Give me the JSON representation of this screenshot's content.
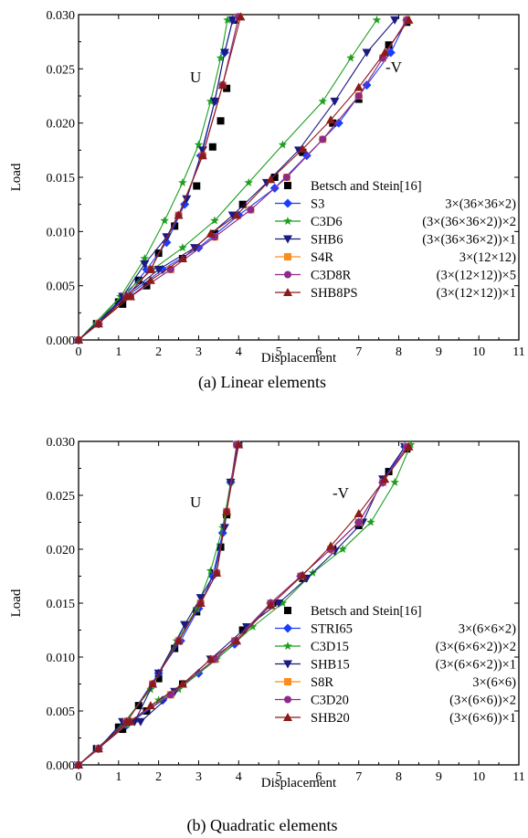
{
  "chart_data": [
    {
      "type": "line",
      "caption": "(a) Linear elements",
      "xlabel": "Displacement",
      "ylabel": "Load",
      "xlim": [
        0,
        11
      ],
      "ylim": [
        0,
        0.03
      ],
      "xticks": [
        "0",
        "1",
        "2",
        "3",
        "4",
        "5",
        "6",
        "7",
        "8",
        "9",
        "10",
        "11"
      ],
      "yticks": [
        "0.000",
        "0.005",
        "0.010",
        "0.015",
        "0.020",
        "0.025",
        "0.030"
      ],
      "annotations": [
        "U",
        "-V"
      ],
      "legend_position": "lower-right",
      "legend": [
        {
          "name": "Betsch and Stein[16]",
          "mesh": ""
        },
        {
          "name": "S3",
          "mesh": "3×(36×36×2)"
        },
        {
          "name": "C3D6",
          "mesh": "(3×(36×36×2))×2"
        },
        {
          "name": "SHB6",
          "mesh": "(3×(36×36×2))×1"
        },
        {
          "name": "S4R",
          "mesh": "3×(12×12)"
        },
        {
          "name": "C3D8R",
          "mesh": "(3×(12×12))×5"
        },
        {
          "name": "SHB8PS",
          "mesh": "(3×(12×12))×1"
        }
      ],
      "series": [
        {
          "name": "Betsch and Stein[16]",
          "color": "#000000",
          "marker": "square",
          "line": false,
          "U": {
            "x": [
              0,
              0.45,
              1.0,
              1.5,
              2.0,
              2.4,
              2.95,
              3.35,
              3.55,
              3.7,
              3.9
            ],
            "y": [
              0,
              0.0015,
              0.0035,
              0.0055,
              0.008,
              0.0105,
              0.0142,
              0.0178,
              0.0202,
              0.0232,
              0.0295
            ]
          },
          "V": {
            "x": [
              0,
              1.1,
              1.7,
              2.6,
              3.4,
              4.1,
              4.9,
              5.6,
              6.35,
              7.0,
              7.75,
              8.2
            ],
            "y": [
              0,
              0.0033,
              0.005,
              0.0075,
              0.0098,
              0.0125,
              0.015,
              0.0173,
              0.02,
              0.0222,
              0.0272,
              0.0293
            ]
          }
        },
        {
          "name": "S3",
          "color": "#1a3cff",
          "marker": "diamond",
          "line": true,
          "U": {
            "x": [
              0,
              0.5,
              1.15,
              1.7,
              2.2,
              2.65,
              3.05,
              3.4,
              3.65,
              3.85
            ],
            "y": [
              0,
              0.0015,
              0.004,
              0.0065,
              0.009,
              0.0125,
              0.017,
              0.022,
              0.0265,
              0.0295
            ]
          },
          "V": {
            "x": [
              0,
              1.2,
              2.1,
              3.0,
              4.0,
              4.9,
              5.7,
              6.5,
              7.2,
              7.8,
              8.2
            ],
            "y": [
              0,
              0.004,
              0.0065,
              0.0085,
              0.0115,
              0.014,
              0.017,
              0.02,
              0.0235,
              0.0265,
              0.0295
            ]
          }
        },
        {
          "name": "C3D6",
          "color": "#1e9e1e",
          "marker": "star",
          "line": true,
          "U": {
            "x": [
              0,
              0.45,
              1.05,
              1.65,
              2.15,
              2.6,
              3.0,
              3.3,
              3.55,
              3.72
            ],
            "y": [
              0,
              0.0015,
              0.004,
              0.0075,
              0.011,
              0.0145,
              0.018,
              0.022,
              0.026,
              0.0295
            ]
          },
          "V": {
            "x": [
              0,
              1.05,
              1.85,
              2.6,
              3.4,
              4.25,
              5.1,
              6.1,
              6.8,
              7.45
            ],
            "y": [
              0,
              0.004,
              0.0065,
              0.0085,
              0.011,
              0.0145,
              0.018,
              0.022,
              0.026,
              0.0295
            ]
          }
        },
        {
          "name": "SHB6",
          "color": "#1a1a80",
          "marker": "triangle-down",
          "line": true,
          "U": {
            "x": [
              0,
              0.5,
              1.1,
              1.65,
              2.2,
              2.7,
              3.1,
              3.4,
              3.65,
              3.85
            ],
            "y": [
              0,
              0.0015,
              0.004,
              0.007,
              0.0095,
              0.013,
              0.0175,
              0.022,
              0.0265,
              0.0295
            ]
          },
          "V": {
            "x": [
              0,
              1.15,
              2.0,
              2.9,
              3.85,
              4.7,
              5.5,
              6.4,
              7.2,
              7.9
            ],
            "y": [
              0,
              0.004,
              0.0065,
              0.0085,
              0.0115,
              0.0145,
              0.0175,
              0.022,
              0.0265,
              0.0295
            ]
          }
        },
        {
          "name": "S4R",
          "color": "#ff8c1a",
          "marker": "square",
          "line": true,
          "U": {
            "x": [
              0,
              0.5,
              1.2,
              1.8,
              2.5,
              3.1,
              3.6,
              4.0
            ],
            "y": [
              0,
              0.0015,
              0.004,
              0.0065,
              0.0115,
              0.017,
              0.0235,
              0.0298
            ]
          },
          "V": {
            "x": [
              0,
              1.3,
              2.3,
              3.4,
              4.3,
              5.2,
              6.1,
              7.0,
              7.6,
              8.2
            ],
            "y": [
              0,
              0.004,
              0.0065,
              0.0095,
              0.012,
              0.015,
              0.0185,
              0.0225,
              0.026,
              0.0295
            ]
          }
        },
        {
          "name": "C3D8R",
          "color": "#8c2a8c",
          "marker": "circle",
          "line": true,
          "U": {
            "x": [
              0,
              0.5,
              1.2,
              1.8,
              2.5,
              3.1,
              3.6,
              4.0
            ],
            "y": [
              0,
              0.0015,
              0.004,
              0.0065,
              0.0115,
              0.017,
              0.0235,
              0.0298
            ]
          },
          "V": {
            "x": [
              0,
              1.3,
              2.3,
              3.4,
              4.3,
              5.2,
              6.1,
              7.0,
              7.6,
              8.2
            ],
            "y": [
              0,
              0.004,
              0.0065,
              0.0095,
              0.012,
              0.015,
              0.0185,
              0.0225,
              0.026,
              0.0295
            ]
          }
        },
        {
          "name": "SHB8PS",
          "color": "#8b1a1a",
          "marker": "triangle-up",
          "line": true,
          "U": {
            "x": [
              0,
              0.5,
              1.2,
              1.8,
              2.5,
              3.1,
              3.6,
              4.05
            ],
            "y": [
              0,
              0.0015,
              0.004,
              0.0065,
              0.0115,
              0.017,
              0.0235,
              0.0298
            ]
          },
          "V": {
            "x": [
              0,
              1.3,
              1.8,
              2.6,
              3.3,
              3.95,
              4.8,
              5.6,
              6.3,
              7.0,
              7.65,
              8.25
            ],
            "y": [
              0,
              0.004,
              0.0055,
              0.0075,
              0.0098,
              0.0115,
              0.0148,
              0.0176,
              0.0203,
              0.0233,
              0.0265,
              0.0295
            ]
          }
        }
      ]
    },
    {
      "type": "line",
      "caption": "(b) Quadratic elements",
      "xlabel": "Displacement",
      "ylabel": "Load",
      "xlim": [
        0,
        11
      ],
      "ylim": [
        0,
        0.03
      ],
      "xticks": [
        "0",
        "1",
        "2",
        "3",
        "4",
        "5",
        "6",
        "7",
        "8",
        "9",
        "10",
        "11"
      ],
      "yticks": [
        "0.000",
        "0.005",
        "0.010",
        "0.015",
        "0.020",
        "0.025",
        "0.030"
      ],
      "annotations": [
        "U",
        "-V"
      ],
      "legend_position": "lower-right",
      "legend": [
        {
          "name": "Betsch and Stein[16]",
          "mesh": ""
        },
        {
          "name": "STRI65",
          "mesh": "3×(6×6×2)"
        },
        {
          "name": "C3D15",
          "mesh": "(3×(6×6×2))×2"
        },
        {
          "name": "SHB15",
          "mesh": "(3×(6×6×2))×1"
        },
        {
          "name": "S8R",
          "mesh": "3×(6×6)"
        },
        {
          "name": "C3D20",
          "mesh": "(3×(6×6))×2"
        },
        {
          "name": "SHB20",
          "mesh": "(3×(6×6))×1"
        }
      ],
      "series": [
        {
          "name": "Betsch and Stein[16]",
          "color": "#000000",
          "marker": "square",
          "line": false,
          "U": {
            "x": [
              0,
              0.45,
              1.0,
              1.5,
              2.0,
              2.4,
              2.95,
              3.35,
              3.55,
              3.7,
              4.0
            ],
            "y": [
              0,
              0.0015,
              0.0035,
              0.0055,
              0.008,
              0.0108,
              0.0142,
              0.0178,
              0.0202,
              0.0232,
              0.0297
            ]
          },
          "V": {
            "x": [
              0,
              1.1,
              1.7,
              2.6,
              3.4,
              4.1,
              4.85,
              5.6,
              6.35,
              7.0,
              7.75,
              8.2
            ],
            "y": [
              0,
              0.0033,
              0.005,
              0.0075,
              0.0098,
              0.0125,
              0.015,
              0.0173,
              0.02,
              0.0222,
              0.0272,
              0.0293
            ]
          }
        },
        {
          "name": "STRI65",
          "color": "#1a3cff",
          "marker": "diamond",
          "line": true,
          "U": {
            "x": [
              0,
              0.5,
              1.2,
              2.0,
              2.55,
              3.0,
              3.35,
              3.6,
              3.8,
              3.98
            ],
            "y": [
              0,
              0.0015,
              0.004,
              0.0085,
              0.0115,
              0.0145,
              0.0175,
              0.0215,
              0.0262,
              0.0297
            ]
          },
          "V": {
            "x": [
              0,
              1.2,
              2.1,
              3.0,
              3.9,
              4.8,
              5.55,
              6.3,
              7.0,
              7.6,
              8.15
            ],
            "y": [
              0,
              0.0037,
              0.006,
              0.0085,
              0.0112,
              0.015,
              0.0175,
              0.02,
              0.0225,
              0.0262,
              0.0295
            ]
          }
        },
        {
          "name": "C3D15",
          "color": "#1e9e1e",
          "marker": "star",
          "line": true,
          "U": {
            "x": [
              0,
              0.5,
              1.15,
              1.8,
              2.45,
              2.95,
              3.3,
              3.6,
              3.8,
              4.0
            ],
            "y": [
              0,
              0.0015,
              0.004,
              0.007,
              0.0115,
              0.0145,
              0.018,
              0.022,
              0.0262,
              0.0297
            ]
          },
          "V": {
            "x": [
              0,
              1.2,
              2.0,
              2.5,
              3.45,
              4.35,
              5.1,
              5.85,
              6.6,
              7.3,
              7.9,
              8.3
            ],
            "y": [
              0,
              0.0037,
              0.006,
              0.007,
              0.0098,
              0.0128,
              0.015,
              0.0178,
              0.02,
              0.0225,
              0.0262,
              0.0297
            ]
          }
        },
        {
          "name": "SHB15",
          "color": "#1a1a80",
          "marker": "triangle-down",
          "line": true,
          "U": {
            "x": [
              0,
              0.5,
              1.1,
              1.4,
              2.0,
              2.65,
              3.05,
              3.4,
              3.65,
              3.8,
              3.98
            ],
            "y": [
              0,
              0.0015,
              0.004,
              0.004,
              0.0085,
              0.013,
              0.0155,
              0.0178,
              0.022,
              0.0262,
              0.0297
            ]
          },
          "V": {
            "x": [
              0,
              1.2,
              1.55,
              2.4,
              3.3,
              4.2,
              5.0,
              5.7,
              6.4,
              7.1,
              7.6,
              8.15
            ],
            "y": [
              0,
              0.004,
              0.004,
              0.0068,
              0.0098,
              0.0128,
              0.015,
              0.0173,
              0.0198,
              0.0225,
              0.0265,
              0.0295
            ]
          }
        },
        {
          "name": "S8R",
          "color": "#ff8c1a",
          "marker": "square",
          "line": true,
          "U": {
            "x": [
              0,
              0.5,
              1.2,
              1.85,
              2.5,
              3.05,
              3.45,
              3.7,
              3.95
            ],
            "y": [
              0,
              0.0015,
              0.004,
              0.0075,
              0.0115,
              0.015,
              0.0178,
              0.0235,
              0.0297
            ]
          },
          "V": {
            "x": [
              0,
              1.25,
              2.3,
              3.4,
              3.9,
              4.8,
              5.55,
              6.3,
              7.0,
              7.6,
              8.2
            ],
            "y": [
              0,
              0.004,
              0.0065,
              0.0098,
              0.0115,
              0.015,
              0.0175,
              0.02,
              0.0225,
              0.0262,
              0.0295
            ]
          }
        },
        {
          "name": "C3D20",
          "color": "#8c2a8c",
          "marker": "circle",
          "line": true,
          "U": {
            "x": [
              0,
              0.5,
              1.2,
              1.85,
              2.5,
              3.05,
              3.45,
              3.7,
              3.95
            ],
            "y": [
              0,
              0.0015,
              0.004,
              0.0075,
              0.0115,
              0.015,
              0.0178,
              0.0235,
              0.0297
            ]
          },
          "V": {
            "x": [
              0,
              1.25,
              2.3,
              3.4,
              3.9,
              4.8,
              5.55,
              6.3,
              7.0,
              7.6,
              8.2
            ],
            "y": [
              0,
              0.004,
              0.0065,
              0.0098,
              0.0115,
              0.015,
              0.0175,
              0.02,
              0.0225,
              0.0262,
              0.0295
            ]
          }
        },
        {
          "name": "SHB20",
          "color": "#8b1a1a",
          "marker": "triangle-up",
          "line": true,
          "U": {
            "x": [
              0,
              0.5,
              1.2,
              1.85,
              2.5,
              3.05,
              3.45,
              3.7,
              4.0
            ],
            "y": [
              0,
              0.0015,
              0.004,
              0.0075,
              0.0115,
              0.015,
              0.0178,
              0.0235,
              0.0297
            ]
          },
          "V": {
            "x": [
              0,
              1.3,
              1.8,
              2.6,
              3.3,
              3.95,
              4.8,
              5.6,
              6.3,
              7.0,
              7.65,
              8.25
            ],
            "y": [
              0,
              0.004,
              0.0055,
              0.0075,
              0.0098,
              0.0115,
              0.0148,
              0.0176,
              0.0203,
              0.0233,
              0.0265,
              0.0295
            ]
          }
        }
      ]
    }
  ]
}
